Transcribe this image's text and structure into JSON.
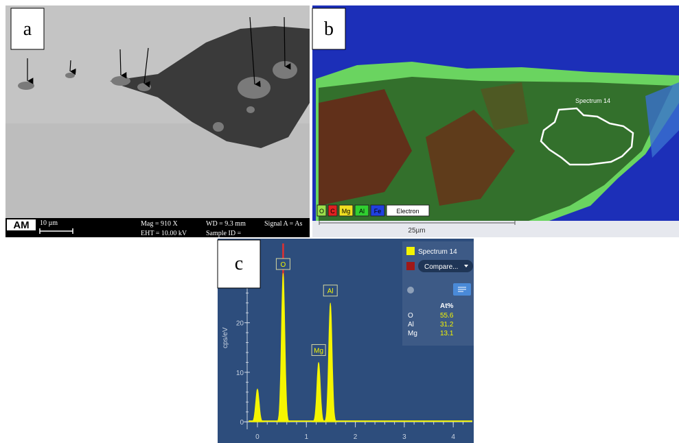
{
  "panel_a": {
    "label": "a",
    "logo": "AM",
    "scale_bar": "10 µm",
    "info": [
      "Mag =  910 X",
      "WD =  9.3 mm",
      "Signal A = As",
      "EHT = 10.00 kV",
      "Sample ID ="
    ]
  },
  "panel_b": {
    "label": "b",
    "region": "Spectrum 14",
    "scale_bar": "25µm",
    "legend": [
      {
        "name": "O",
        "color": "#9be04a"
      },
      {
        "name": "C",
        "color": "#e02020"
      },
      {
        "name": "Mg",
        "color": "#f0e020"
      },
      {
        "name": "Al",
        "color": "#30d030"
      },
      {
        "name": "Fe",
        "color": "#2040e0"
      },
      {
        "name": "Electron",
        "color": "#ffffff"
      }
    ]
  },
  "panel_c": {
    "label": "c",
    "y_label": "cps/eV",
    "series_name": "Spectrum 14",
    "series_color": "#f5f500",
    "compare": "Compare...",
    "compare_color": "#a01818",
    "table_header": "At%",
    "table_rows": [
      [
        "O",
        "55.6"
      ],
      [
        "Al",
        "31.2"
      ],
      [
        "Mg",
        "13.1"
      ]
    ],
    "xlim": [
      -0.28,
      4.39
    ],
    "ylim": [
      -1.5,
      36
    ],
    "xticks": [
      0,
      1,
      2,
      3,
      4
    ],
    "yticks": [
      0,
      10,
      20
    ],
    "peaks": [
      {
        "label": null,
        "energy": 0.0,
        "height": 6.6
      },
      {
        "label": "O",
        "energy": 0.525,
        "height": 30
      },
      {
        "label": "Mg",
        "energy": 1.25,
        "height": 12
      },
      {
        "label": "Al",
        "energy": 1.49,
        "height": 24
      }
    ]
  }
}
